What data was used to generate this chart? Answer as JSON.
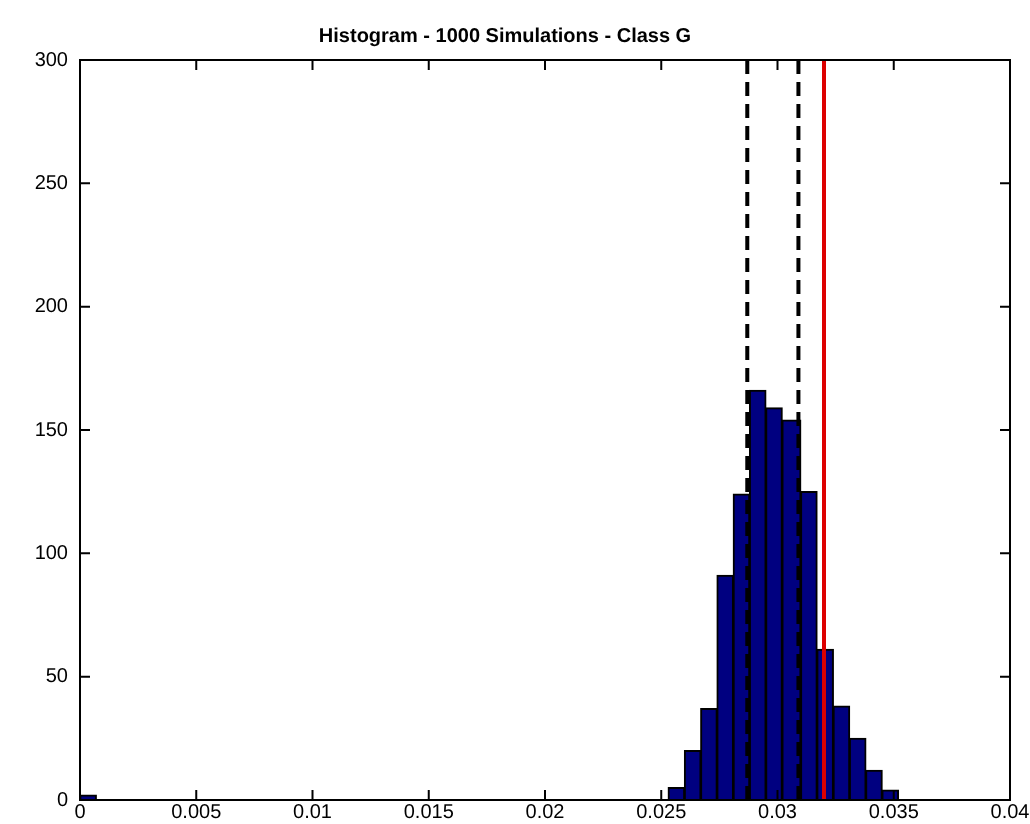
{
  "chart_data": {
    "type": "histogram",
    "title": "Histogram - 1000 Simulations - Class G",
    "bins": [
      0,
      0.0007,
      0.0253,
      0.026,
      0.0267,
      0.0274,
      0.0281,
      0.0288,
      0.0295,
      0.0302,
      0.031,
      0.0317,
      0.0324,
      0.0331,
      0.0338,
      0.0345,
      0.0352
    ],
    "values": [
      2,
      0,
      5,
      20,
      37,
      91,
      124,
      166,
      159,
      154,
      125,
      61,
      38,
      25,
      12,
      4
    ],
    "color": "#000080",
    "xlim": [
      0,
      0.04
    ],
    "xticks": [
      0,
      0.005,
      0.01,
      0.015,
      0.02,
      0.025,
      0.03,
      0.035,
      0.04
    ],
    "ylim": [
      0,
      300
    ],
    "yticks": [
      0,
      50,
      100,
      150,
      200,
      250,
      300
    ],
    "grid": false,
    "legend": false,
    "ref_lines": [
      {
        "axis": "x",
        "value": 0.0287,
        "color": "#000000",
        "line_style": "dashed"
      },
      {
        "axis": "x",
        "value": 0.0309,
        "color": "#000000",
        "line_style": "dashed"
      },
      {
        "axis": "x",
        "value": 0.032,
        "color": "#dd0000",
        "line_style": "solid"
      }
    ]
  }
}
